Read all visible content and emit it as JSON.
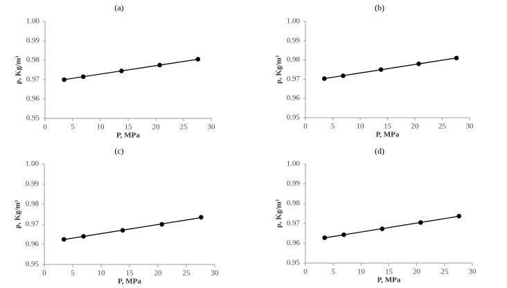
{
  "chart_data": [
    {
      "type": "scatter",
      "title": "(a)",
      "x_label": "P, MPa",
      "y_label": "ρ, Kg/m³",
      "x": [
        3.45,
        6.9,
        13.8,
        20.7,
        27.6
      ],
      "series": [
        {
          "color": "#000000",
          "values": [
            0.97,
            0.9715,
            0.9745,
            0.9775,
            0.9805
          ]
        }
      ],
      "trendline": "linear",
      "xlim": [
        0,
        30
      ],
      "xticks": [
        0,
        5,
        10,
        15,
        20,
        25,
        30
      ],
      "ylim": [
        0.95,
        1.0
      ],
      "yticks": [
        0.95,
        0.96,
        0.97,
        0.98,
        0.99,
        {
          "value": 1.0,
          "label": "1.00"
        }
      ]
    },
    {
      "type": "scatter",
      "title": "(b)",
      "x_label": "P, MPa",
      "y_label": "ρ, Kg/m³",
      "x": [
        3.45,
        6.9,
        13.8,
        20.7,
        27.6
      ],
      "series": [
        {
          "color": "#000000",
          "values": [
            0.9703,
            0.9718,
            0.975,
            0.978,
            0.981
          ]
        }
      ],
      "trendline": "linear",
      "xlim": [
        0,
        30
      ],
      "xticks": [
        0,
        5,
        10,
        15,
        20,
        25,
        30
      ],
      "ylim": [
        0.95,
        1.0
      ],
      "yticks": [
        0.95,
        0.96,
        0.97,
        0.98,
        0.99,
        {
          "value": 1.0,
          "label": "1.00"
        }
      ]
    },
    {
      "type": "scatter",
      "title": "(c)",
      "x_label": "P, MPa",
      "y_label": "ρ, Kg/m³",
      "x": [
        3.45,
        6.9,
        13.8,
        20.7,
        27.6
      ],
      "series": [
        {
          "color": "#000000",
          "values": [
            0.9625,
            0.964,
            0.967,
            0.97,
            0.9735
          ]
        }
      ],
      "trendline": "linear",
      "xlim": [
        0,
        30
      ],
      "xticks": [
        0,
        5,
        10,
        15,
        20,
        25,
        30
      ],
      "ylim": [
        0.95,
        1.0
      ],
      "yticks": [
        0.95,
        0.96,
        0.97,
        0.98,
        0.99,
        {
          "value": 1.0,
          "label": "1.00"
        }
      ]
    },
    {
      "type": "scatter",
      "title": "(d)",
      "x_label": "P, MPa",
      "y_label": "ρ, Kg/m³",
      "x": [
        3.45,
        6.9,
        13.8,
        20.7,
        27.6
      ],
      "series": [
        {
          "color": "#000000",
          "values": [
            0.9628,
            0.9643,
            0.9673,
            0.9705,
            0.9737
          ]
        }
      ],
      "trendline": "linear",
      "xlim": [
        0,
        30
      ],
      "xticks": [
        0,
        5,
        10,
        15,
        20,
        25,
        30
      ],
      "ylim": [
        0.95,
        1.0
      ],
      "yticks": [
        0.95,
        0.96,
        0.97,
        0.98,
        0.99,
        {
          "value": 1.0,
          "label": "1.00"
        }
      ]
    }
  ]
}
